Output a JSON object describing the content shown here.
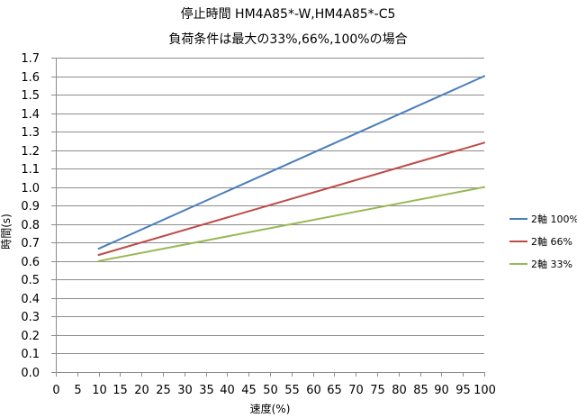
{
  "chart_data": {
    "type": "line",
    "title": "停止時間 HM4A85*-W,HM4A85*-C5",
    "subtitle": "負荷条件は最大の33%,66%,100%の場合",
    "xlabel": "速度(%)",
    "ylabel": "時間(s)",
    "xlim": [
      0,
      100
    ],
    "ylim": [
      0.0,
      1.7
    ],
    "x_ticks": [
      "0",
      "5",
      "10",
      "15",
      "20",
      "25",
      "30",
      "35",
      "40",
      "45",
      "50",
      "55",
      "60",
      "65",
      "70",
      "75",
      "80",
      "85",
      "90",
      "95",
      "100"
    ],
    "y_ticks": [
      "0.0",
      "0.1",
      "0.2",
      "0.3",
      "0.4",
      "0.5",
      "0.6",
      "0.7",
      "0.8",
      "0.9",
      "1.0",
      "1.1",
      "1.2",
      "1.3",
      "1.4",
      "1.5",
      "1.6",
      "1.7"
    ],
    "grid": "horizontal",
    "legend_position": "right",
    "series": [
      {
        "name": "2軸 100%",
        "color": "#4a7ebb",
        "x": [
          10,
          100
        ],
        "y": [
          0.667,
          1.6
        ]
      },
      {
        "name": "2軸 66%",
        "color": "#be4b48",
        "x": [
          10,
          100
        ],
        "y": [
          0.633,
          1.24
        ]
      },
      {
        "name": "2軸 33%",
        "color": "#98b954",
        "x": [
          10,
          100
        ],
        "y": [
          0.6,
          1.0
        ]
      }
    ]
  }
}
